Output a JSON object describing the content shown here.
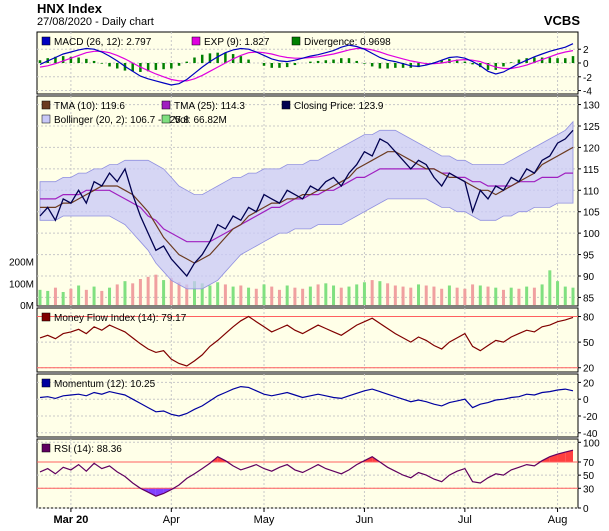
{
  "header": {
    "title": "HNX Index",
    "date_line": "27/08/2020 - Daily chart",
    "brand": "VCBS"
  },
  "colors": {
    "panel_bg": "#ffffe8",
    "grid": "#c8c8c8",
    "tma10": "#6b3a1f",
    "tma25": "#a020c0",
    "close": "#000050",
    "bollinger_fill": "#c8c8f8",
    "bollinger_line": "#9090e0",
    "vol_up": "#80e080",
    "vol_down": "#f0a0a0",
    "macd": "#0000c0",
    "exp": "#e000e0",
    "divergence": "#008000",
    "mfi": "#800000",
    "momentum": "#0000a0",
    "rsi": "#600060",
    "rsi_high": "#ff4040",
    "rsi_low": "#8040ff",
    "ref_line": "#ff6060"
  },
  "x_axis": {
    "months": [
      "Mar 20",
      "Apr",
      "May",
      "Jun",
      "Jul",
      "Aug"
    ]
  },
  "chart_data": [
    {
      "type": "line",
      "panel": "macd",
      "legend": [
        {
          "label": "MACD (26, 12): 2.797",
          "color": "#0000c0"
        },
        {
          "label": "EXP (9): 1.827",
          "color": "#e000e0"
        },
        {
          "label": "Divergence: 0.9698",
          "color": "#008000"
        }
      ],
      "y_ticks": [
        "2",
        "0",
        "-2",
        "-4"
      ],
      "ylim": [
        -4.5,
        4.5
      ],
      "macd": [
        -0.2,
        0.3,
        0.8,
        1.3,
        1.6,
        1.9,
        2.1,
        2.0,
        1.6,
        1.0,
        0.3,
        -0.5,
        -1.2,
        -1.9,
        -2.3,
        -2.6,
        -2.9,
        -3.2,
        -3.0,
        -2.4,
        -1.5,
        -0.6,
        0.2,
        0.9,
        1.5,
        1.9,
        2.1,
        2.0,
        1.6,
        1.1,
        0.6,
        0.3,
        0.2,
        0.4,
        0.7,
        1.0,
        1.2,
        1.5,
        1.8,
        2.3,
        2.6,
        2.4,
        2.0,
        1.4,
        0.8,
        0.4,
        0.2,
        -0.1,
        -0.4,
        -0.5,
        -0.3,
        0.0,
        0.4,
        0.8,
        0.9,
        0.7,
        0.2,
        -0.4,
        -1.2,
        -1.6,
        -1.3,
        -0.7,
        -0.1,
        0.4,
        0.9,
        1.3,
        1.7,
        2.0,
        2.3,
        2.8
      ],
      "exp": [
        -0.6,
        -0.4,
        -0.1,
        0.3,
        0.7,
        1.1,
        1.5,
        1.7,
        1.7,
        1.5,
        1.1,
        0.6,
        0.0,
        -0.6,
        -1.1,
        -1.6,
        -2.0,
        -2.4,
        -2.6,
        -2.6,
        -2.3,
        -1.8,
        -1.2,
        -0.6,
        0.0,
        0.6,
        1.1,
        1.5,
        1.6,
        1.5,
        1.3,
        1.0,
        0.8,
        0.7,
        0.7,
        0.8,
        0.9,
        1.1,
        1.3,
        1.6,
        1.9,
        2.1,
        2.1,
        1.9,
        1.6,
        1.2,
        0.9,
        0.6,
        0.3,
        0.1,
        -0.1,
        -0.1,
        0.0,
        0.2,
        0.4,
        0.5,
        0.4,
        0.2,
        -0.2,
        -0.6,
        -0.8,
        -0.8,
        -0.6,
        -0.3,
        0.1,
        0.5,
        0.9,
        1.3,
        1.6,
        1.8
      ]
    },
    {
      "type": "line",
      "panel": "price",
      "legend": [
        {
          "label": "TMA (10): 119.6",
          "color": "#6b3a1f"
        },
        {
          "label": "TMA (25): 114.3",
          "color": "#a020c0"
        },
        {
          "label": "Closing Price: 123.9",
          "color": "#000050"
        },
        {
          "label": "Bollinger (20, 2): 106.7 - 125.8",
          "color": "#c8c8f8"
        },
        {
          "label": "Vol: 66.82M",
          "color": "#80e080"
        }
      ],
      "y_ticks": [
        "130",
        "125",
        "120",
        "115",
        "110",
        "105",
        "100",
        "95",
        "90",
        "85"
      ],
      "ylim": [
        83,
        132
      ],
      "vol_ticks": [
        "200M",
        "100M",
        "0M"
      ],
      "vol_lim": [
        0,
        300
      ],
      "close": [
        104,
        106,
        103,
        108,
        107,
        110,
        107,
        112,
        111,
        114,
        112,
        115,
        109,
        104,
        100,
        96,
        97,
        94,
        92,
        90,
        93,
        95,
        98,
        102,
        101,
        104,
        103,
        106,
        105,
        109,
        108,
        107,
        110,
        109,
        108,
        111,
        110,
        112,
        113,
        111,
        114,
        116,
        119,
        118,
        122,
        121,
        119,
        117,
        115,
        117,
        116,
        113,
        111,
        114,
        113,
        112,
        105,
        110,
        108,
        111,
        110,
        113,
        112,
        115,
        114,
        117,
        118,
        121,
        122,
        124
      ],
      "tma10": [
        106,
        106,
        106,
        107,
        107,
        108,
        109,
        110,
        111,
        111,
        111,
        110,
        109,
        107,
        105,
        102,
        99,
        97,
        95,
        94,
        93,
        94,
        95,
        97,
        99,
        101,
        102,
        104,
        105,
        106,
        107,
        107,
        108,
        108,
        109,
        109,
        110,
        110,
        111,
        112,
        113,
        115,
        116,
        117,
        118,
        119,
        119,
        118,
        117,
        116,
        115,
        115,
        114,
        113,
        113,
        112,
        111,
        110,
        110,
        109,
        110,
        111,
        112,
        113,
        114,
        116,
        117,
        118,
        119,
        120
      ],
      "tma25": [
        108,
        108,
        108,
        109,
        109,
        109,
        110,
        110,
        110,
        110,
        109,
        108,
        107,
        106,
        104,
        103,
        101,
        100,
        99,
        98,
        98,
        98,
        98,
        99,
        100,
        101,
        102,
        103,
        104,
        105,
        106,
        106,
        107,
        108,
        108,
        109,
        109,
        110,
        110,
        111,
        112,
        113,
        113,
        114,
        115,
        115,
        115,
        115,
        115,
        115,
        115,
        115,
        114,
        114,
        113,
        113,
        112,
        112,
        111,
        111,
        111,
        111,
        112,
        112,
        112,
        113,
        113,
        113,
        114,
        114
      ],
      "boll_upper": [
        112,
        112,
        112,
        113,
        113,
        114,
        114,
        115,
        115,
        116,
        116,
        117,
        117,
        117,
        117,
        116,
        115,
        113,
        111,
        110,
        109,
        109,
        110,
        111,
        112,
        113,
        113,
        114,
        114,
        115,
        115,
        115,
        116,
        116,
        116,
        117,
        117,
        118,
        119,
        120,
        121,
        122,
        123,
        123,
        124,
        124,
        124,
        123,
        122,
        121,
        120,
        119,
        118,
        118,
        117,
        117,
        116,
        116,
        116,
        116,
        116,
        117,
        118,
        119,
        120,
        121,
        122,
        123,
        124,
        126
      ],
      "boll_lower": [
        103,
        103,
        103,
        104,
        104,
        104,
        104,
        104,
        104,
        104,
        103,
        102,
        100,
        98,
        96,
        93,
        91,
        89,
        88,
        87,
        87,
        87,
        88,
        89,
        91,
        93,
        95,
        96,
        97,
        98,
        99,
        100,
        100,
        101,
        101,
        101,
        102,
        102,
        102,
        102,
        103,
        104,
        105,
        106,
        107,
        108,
        108,
        108,
        108,
        108,
        108,
        107,
        106,
        106,
        105,
        105,
        104,
        103,
        103,
        103,
        104,
        104,
        105,
        105,
        106,
        106,
        106,
        107,
        107,
        107
      ],
      "volume": [
        70,
        65,
        80,
        60,
        75,
        90,
        70,
        85,
        65,
        80,
        95,
        110,
        100,
        120,
        130,
        140,
        115,
        125,
        105,
        95,
        110,
        100,
        90,
        105,
        95,
        85,
        90,
        80,
        75,
        95,
        85,
        70,
        90,
        80,
        75,
        85,
        95,
        100,
        90,
        80,
        85,
        95,
        105,
        115,
        110,
        100,
        90,
        85,
        80,
        95,
        90,
        85,
        75,
        90,
        80,
        75,
        95,
        90,
        85,
        80,
        70,
        80,
        75,
        85,
        80,
        95,
        160,
        110,
        85,
        80
      ]
    },
    {
      "type": "line",
      "panel": "mfi",
      "legend": [
        {
          "label": "Money Flow Index (14): 79.17",
          "color": "#800000"
        }
      ],
      "y_ticks": [
        "80",
        "50",
        "20"
      ],
      "ylim": [
        15,
        90
      ],
      "ref_lines": [
        80,
        20
      ],
      "values": [
        55,
        58,
        54,
        60,
        62,
        65,
        60,
        68,
        64,
        70,
        66,
        62,
        55,
        48,
        42,
        38,
        40,
        30,
        25,
        22,
        28,
        35,
        45,
        52,
        60,
        68,
        75,
        80,
        74,
        68,
        62,
        66,
        70,
        64,
        60,
        65,
        70,
        66,
        62,
        58,
        64,
        70,
        74,
        78,
        72,
        66,
        60,
        55,
        50,
        56,
        52,
        46,
        42,
        50,
        55,
        60,
        45,
        40,
        46,
        52,
        50,
        56,
        60,
        64,
        62,
        68,
        70,
        74,
        76,
        79
      ]
    },
    {
      "type": "line",
      "panel": "momentum",
      "legend": [
        {
          "label": "Momentum (12): 10.25",
          "color": "#0000a0"
        }
      ],
      "y_ticks": [
        "20",
        "0",
        "-20",
        "-40"
      ],
      "ylim": [
        -45,
        30
      ],
      "values": [
        2,
        3,
        1,
        4,
        5,
        6,
        4,
        8,
        6,
        9,
        7,
        5,
        0,
        -5,
        -10,
        -15,
        -14,
        -18,
        -20,
        -17,
        -12,
        -8,
        -2,
        4,
        8,
        12,
        15,
        14,
        10,
        6,
        4,
        6,
        8,
        5,
        2,
        4,
        6,
        4,
        2,
        1,
        4,
        7,
        10,
        12,
        9,
        6,
        3,
        0,
        -3,
        -1,
        -3,
        -6,
        -8,
        -4,
        -2,
        0,
        -10,
        -6,
        -4,
        -1,
        0,
        2,
        3,
        6,
        5,
        8,
        9,
        11,
        12,
        10
      ]
    },
    {
      "type": "area",
      "panel": "rsi",
      "legend": [
        {
          "label": "RSI (14): 88.36",
          "color": "#600060"
        }
      ],
      "y_ticks": [
        "100",
        "70",
        "50",
        "30",
        "0"
      ],
      "ylim": [
        0,
        105
      ],
      "ref_lines": [
        70,
        30
      ],
      "values": [
        55,
        60,
        52,
        62,
        58,
        66,
        56,
        68,
        60,
        64,
        55,
        48,
        38,
        30,
        24,
        18,
        22,
        28,
        35,
        45,
        52,
        60,
        68,
        78,
        72,
        64,
        58,
        62,
        66,
        60,
        56,
        62,
        66,
        58,
        54,
        60,
        66,
        60,
        56,
        52,
        58,
        66,
        72,
        78,
        70,
        62,
        56,
        50,
        46,
        54,
        50,
        44,
        40,
        50,
        56,
        60,
        40,
        38,
        46,
        52,
        50,
        58,
        62,
        66,
        64,
        72,
        78,
        82,
        85,
        88
      ]
    }
  ]
}
